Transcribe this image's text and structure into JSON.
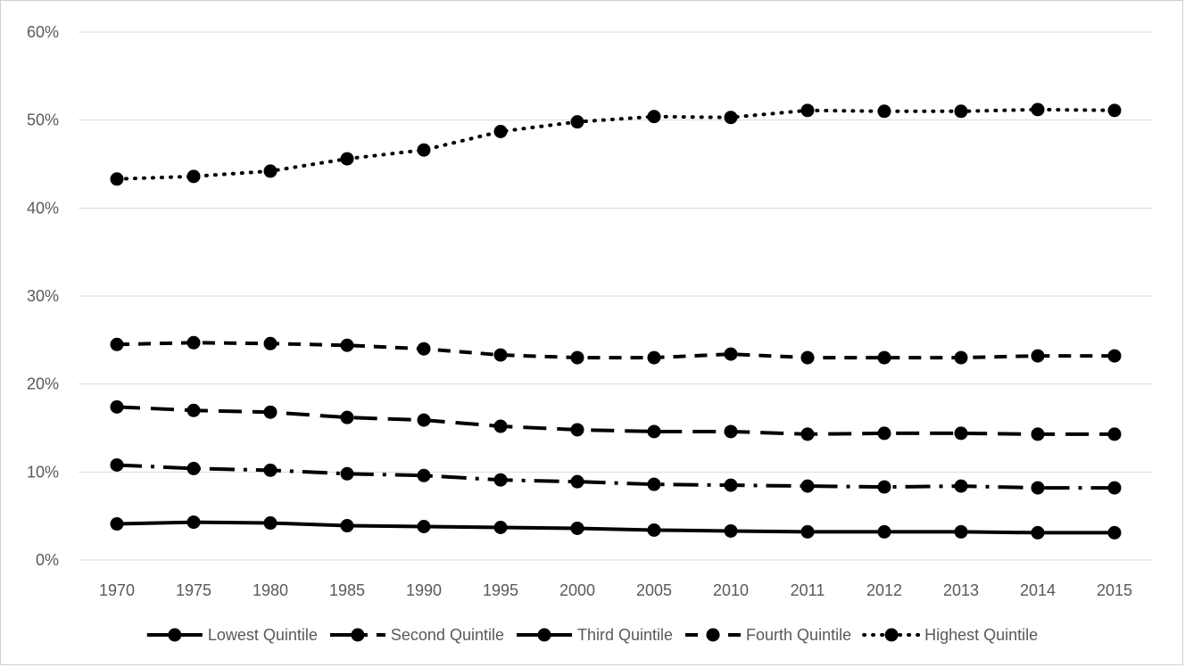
{
  "chart_data": {
    "type": "line",
    "title": "",
    "xlabel": "",
    "ylabel": "",
    "categories": [
      "1970",
      "1975",
      "1980",
      "1985",
      "1990",
      "1995",
      "2000",
      "2005",
      "2010",
      "2011",
      "2012",
      "2013",
      "2014",
      "2015"
    ],
    "y_ticks": [
      "0%",
      "10%",
      "20%",
      "30%",
      "40%",
      "50%",
      "60%"
    ],
    "ylim": [
      0,
      60
    ],
    "y_unit": "%",
    "grid": "horizontal",
    "legend_position": "bottom",
    "series": [
      {
        "name": "Lowest Quintile",
        "dash": "solid",
        "values": [
          4.1,
          4.3,
          4.2,
          3.9,
          3.8,
          3.7,
          3.6,
          3.4,
          3.3,
          3.2,
          3.2,
          3.2,
          3.1,
          3.1
        ]
      },
      {
        "name": "Second Quintile",
        "dash": "long-dash-dot",
        "values": [
          10.8,
          10.4,
          10.2,
          9.8,
          9.6,
          9.1,
          8.9,
          8.6,
          8.5,
          8.4,
          8.3,
          8.4,
          8.2,
          8.2
        ]
      },
      {
        "name": "Third Quintile",
        "dash": "long-dash",
        "values": [
          17.4,
          17.0,
          16.8,
          16.2,
          15.9,
          15.2,
          14.8,
          14.6,
          14.6,
          14.3,
          14.4,
          14.4,
          14.3,
          14.3
        ]
      },
      {
        "name": "Fourth Quintile",
        "dash": "dash",
        "values": [
          24.5,
          24.7,
          24.6,
          24.4,
          24.0,
          23.3,
          23.0,
          23.0,
          23.4,
          23.0,
          23.0,
          23.0,
          23.2,
          23.2
        ]
      },
      {
        "name": "Highest Quintile",
        "dash": "dot",
        "values": [
          43.3,
          43.6,
          44.2,
          45.6,
          46.6,
          48.7,
          49.8,
          50.4,
          50.3,
          51.1,
          51.0,
          51.0,
          51.2,
          51.1
        ]
      }
    ],
    "colors": {
      "line": "#000000",
      "grid": "#d9d9d9",
      "axis": "#d9d9d9",
      "text": "#595959"
    }
  }
}
